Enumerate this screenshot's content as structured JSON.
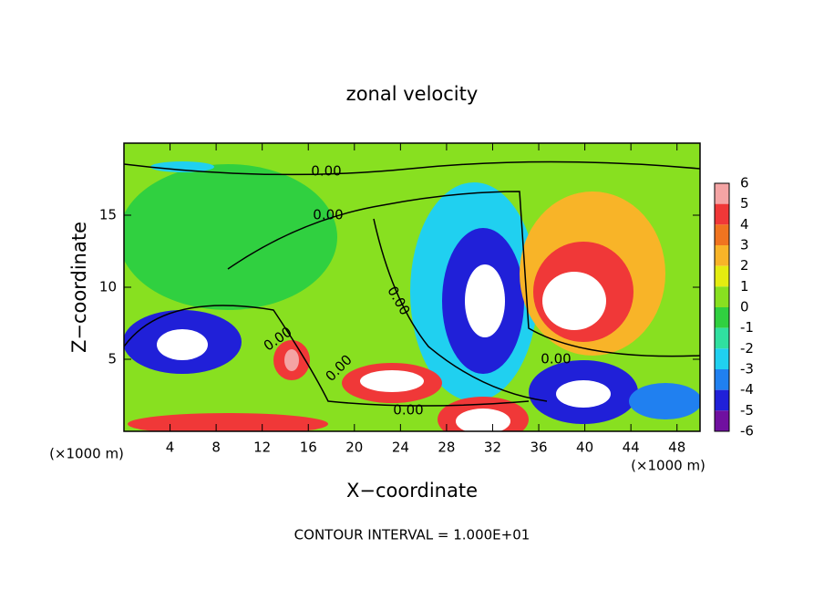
{
  "chart_data": {
    "type": "contour",
    "title": "zonal velocity",
    "xlabel": "X−coordinate",
    "ylabel": "Z−coordinate",
    "x_unit_label": "(×1000 m)",
    "x_unit_label_right": "(×1000 m)",
    "footer": "CONTOUR INTERVAL = 1.000E+01",
    "xlim": [
      0,
      50
    ],
    "xticks": [
      4,
      8,
      12,
      16,
      20,
      24,
      28,
      32,
      36,
      40,
      44,
      48
    ],
    "ylim": [
      0,
      20
    ],
    "yticks": [
      5,
      10,
      15
    ],
    "contour_labels": [
      "0.00",
      "0.00",
      "0.00",
      "0.00",
      "0.00",
      "0.00",
      "0.00"
    ],
    "colorbar": {
      "levels": [
        6,
        5,
        4,
        3,
        2,
        1,
        0,
        -1,
        -2,
        -3,
        -4,
        -5,
        -6
      ],
      "colors": [
        "#f4a4a4",
        "#f03838",
        "#f07420",
        "#f8b428",
        "#e4ec10",
        "#88e020",
        "#30d040",
        "#30e0a0",
        "#20d0f0",
        "#2080f0",
        "#2020d8",
        "#7010a0"
      ]
    }
  }
}
